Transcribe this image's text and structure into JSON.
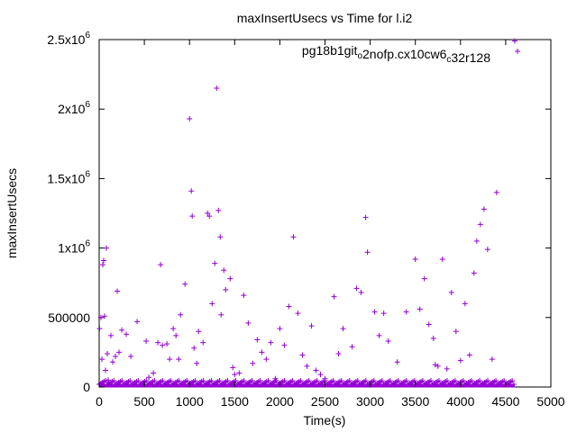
{
  "chart_data": {
    "type": "scatter",
    "title": "maxInsertUsecs vs Time for l.i2",
    "xlabel": "Time(s)",
    "ylabel": "maxInsertUsecs",
    "xlim": [
      0,
      5000
    ],
    "ylim": [
      0,
      2500000
    ],
    "x_ticks": [
      {
        "value": 0,
        "label": "0"
      },
      {
        "value": 500,
        "label": "500"
      },
      {
        "value": 1000,
        "label": "1000"
      },
      {
        "value": 1500,
        "label": "1500"
      },
      {
        "value": 2000,
        "label": "2000"
      },
      {
        "value": 2500,
        "label": "2500"
      },
      {
        "value": 3000,
        "label": "3000"
      },
      {
        "value": 3500,
        "label": "3500"
      },
      {
        "value": 4000,
        "label": "4000"
      },
      {
        "value": 4500,
        "label": "4500"
      },
      {
        "value": 5000,
        "label": "5000"
      }
    ],
    "y_ticks": [
      {
        "value": 0,
        "label": "0",
        "mantissa": "",
        "exp": ""
      },
      {
        "value": 500000,
        "label": "500000",
        "mantissa": "",
        "exp": ""
      },
      {
        "value": 1000000,
        "label": "",
        "mantissa": "1x10",
        "exp": "6"
      },
      {
        "value": 1500000,
        "label": "",
        "mantissa": "1.5x10",
        "exp": "6"
      },
      {
        "value": 2000000,
        "label": "",
        "mantissa": "2x10",
        "exp": "6"
      },
      {
        "value": 2500000,
        "label": "",
        "mantissa": "2.5x10",
        "exp": "6"
      }
    ],
    "grid": false,
    "legend_position": "top-right",
    "marker": "+",
    "series": [
      {
        "name": "pg18b1git_o2nofp.cx10cw6_c32r128",
        "name_parts": [
          {
            "text": "pg18b1git",
            "sub": false
          },
          {
            "text": "o",
            "sub": true
          },
          {
            "text": "2nofp.cx10cw6",
            "sub": false
          },
          {
            "text": "c",
            "sub": true
          },
          {
            "text": "32r128",
            "sub": false
          }
        ],
        "color": "#9400D3",
        "baseline_range": [
          0,
          4600
        ],
        "points": [
          [
            5,
            420000
          ],
          [
            20,
            500000
          ],
          [
            30,
            200000
          ],
          [
            40,
            880000
          ],
          [
            50,
            910000
          ],
          [
            60,
            510000
          ],
          [
            70,
            120000
          ],
          [
            80,
            1000000
          ],
          [
            90,
            240000
          ],
          [
            100,
            50000
          ],
          [
            130,
            370000
          ],
          [
            150,
            180000
          ],
          [
            180,
            220000
          ],
          [
            200,
            690000
          ],
          [
            220,
            250000
          ],
          [
            250,
            410000
          ],
          [
            300,
            380000
          ],
          [
            350,
            220000
          ],
          [
            420,
            470000
          ],
          [
            520,
            330000
          ],
          [
            550,
            70000
          ],
          [
            600,
            100000
          ],
          [
            650,
            320000
          ],
          [
            680,
            880000
          ],
          [
            700,
            300000
          ],
          [
            750,
            310000
          ],
          [
            780,
            200000
          ],
          [
            820,
            420000
          ],
          [
            850,
            370000
          ],
          [
            880,
            200000
          ],
          [
            900,
            520000
          ],
          [
            950,
            740000
          ],
          [
            1000,
            1930000
          ],
          [
            1020,
            1410000
          ],
          [
            1030,
            1230000
          ],
          [
            1050,
            280000
          ],
          [
            1080,
            170000
          ],
          [
            1100,
            400000
          ],
          [
            1150,
            320000
          ],
          [
            1200,
            1250000
          ],
          [
            1220,
            1230000
          ],
          [
            1250,
            600000
          ],
          [
            1280,
            890000
          ],
          [
            1300,
            2150000
          ],
          [
            1320,
            1270000
          ],
          [
            1340,
            1080000
          ],
          [
            1350,
            520000
          ],
          [
            1380,
            840000
          ],
          [
            1400,
            700000
          ],
          [
            1450,
            780000
          ],
          [
            1480,
            140000
          ],
          [
            1500,
            90000
          ],
          [
            1550,
            100000
          ],
          [
            1600,
            660000
          ],
          [
            1650,
            460000
          ],
          [
            1700,
            170000
          ],
          [
            1750,
            340000
          ],
          [
            1800,
            250000
          ],
          [
            1850,
            200000
          ],
          [
            1900,
            320000
          ],
          [
            1950,
            60000
          ],
          [
            2000,
            420000
          ],
          [
            2050,
            300000
          ],
          [
            2100,
            580000
          ],
          [
            2150,
            1080000
          ],
          [
            2200,
            530000
          ],
          [
            2250,
            230000
          ],
          [
            2300,
            150000
          ],
          [
            2350,
            440000
          ],
          [
            2400,
            120000
          ],
          [
            2450,
            90000
          ],
          [
            2500,
            60000
          ],
          [
            2600,
            650000
          ],
          [
            2650,
            240000
          ],
          [
            2700,
            420000
          ],
          [
            2800,
            290000
          ],
          [
            2850,
            710000
          ],
          [
            2900,
            680000
          ],
          [
            2950,
            1220000
          ],
          [
            2970,
            970000
          ],
          [
            3050,
            540000
          ],
          [
            3100,
            370000
          ],
          [
            3150,
            530000
          ],
          [
            3200,
            330000
          ],
          [
            3300,
            180000
          ],
          [
            3400,
            540000
          ],
          [
            3500,
            920000
          ],
          [
            3550,
            560000
          ],
          [
            3600,
            780000
          ],
          [
            3650,
            450000
          ],
          [
            3700,
            350000
          ],
          [
            3720,
            160000
          ],
          [
            3750,
            150000
          ],
          [
            3800,
            920000
          ],
          [
            3850,
            130000
          ],
          [
            3900,
            680000
          ],
          [
            3950,
            400000
          ],
          [
            4000,
            190000
          ],
          [
            4050,
            600000
          ],
          [
            4100,
            230000
          ],
          [
            4150,
            820000
          ],
          [
            4180,
            1050000
          ],
          [
            4220,
            1170000
          ],
          [
            4260,
            1280000
          ],
          [
            4300,
            990000
          ],
          [
            4350,
            200000
          ],
          [
            4400,
            1400000
          ],
          [
            4600,
            2490000
          ]
        ]
      }
    ]
  }
}
